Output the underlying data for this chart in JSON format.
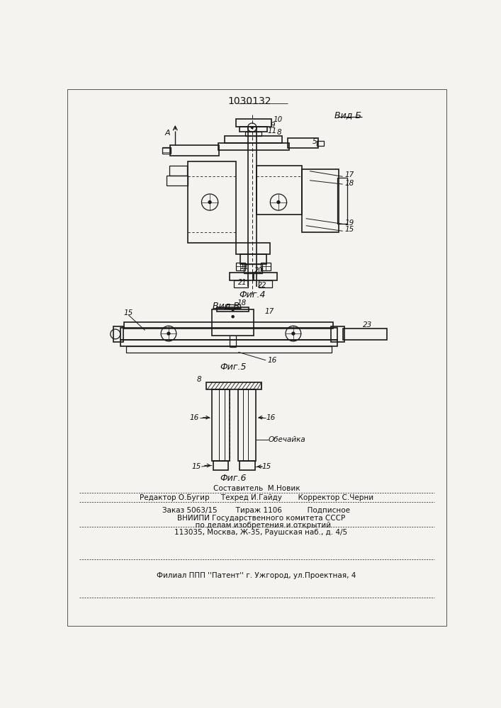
{
  "title": "1030132",
  "background": "#f5f3f0",
  "fig4_label": "Фиг.4",
  "fig5_label": "Фиг.5",
  "fig6_label": "Фиг.6",
  "vid_b_label": "Вид Б",
  "vid_v_label": "Вид В",
  "obechajka": "Обечайка",
  "footer_line1": "Составитель  М.Новик",
  "footer_line2": "Редактор О.Бугир     Техред И.Гайду       Корректор С.Черни",
  "footer_line3": "Заказ 5063/15        Тираж 1106           Подписное",
  "footer_line4": "    ВНИИПИ Государственного комитета СССР",
  "footer_line5": "      по делам изобретения и открытий",
  "footer_line6": "    113035, Москва, Ж-35, Раушская наб., д. 4/5",
  "footer_line7": "Филиал ППП ''Патент'' г. Ужгород, ул.Проектная, 4",
  "line_color": "#1a1a1a",
  "text_color": "#111111"
}
